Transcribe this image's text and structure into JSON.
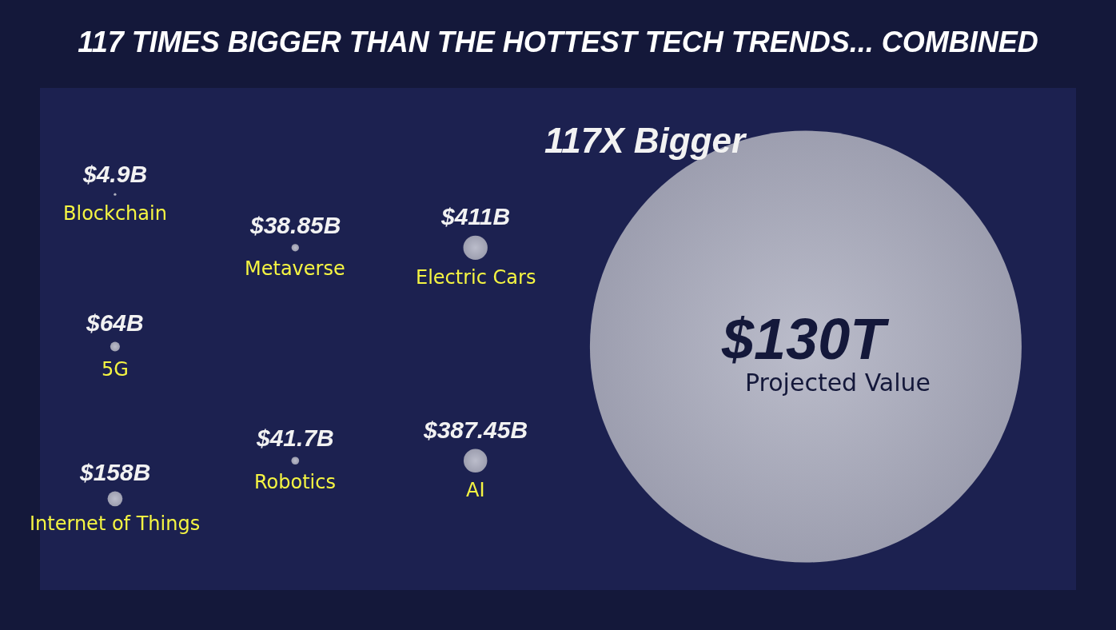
{
  "chart_data": {
    "type": "other",
    "title": "117 TIMES BIGGER THAN THE HOTTEST TECH TRENDS... COMBINED",
    "categories": [
      "Blockchain",
      "5G",
      "Internet of Things",
      "Metaverse",
      "Robotics",
      "Electric Cars",
      "AI",
      "Projected Value"
    ],
    "values": [
      4900000000,
      64000000000,
      158000000000,
      38850000000,
      41700000000,
      411000000000,
      387450000000,
      130000000000000
    ],
    "value_labels": [
      "$4.9B",
      "$64B",
      "$158B",
      "$38.85B",
      "$41.7B",
      "$411B",
      "$387.45B",
      "$130T"
    ],
    "color": "#d4d4d8",
    "annotations": [
      "117X Bigger"
    ]
  }
}
